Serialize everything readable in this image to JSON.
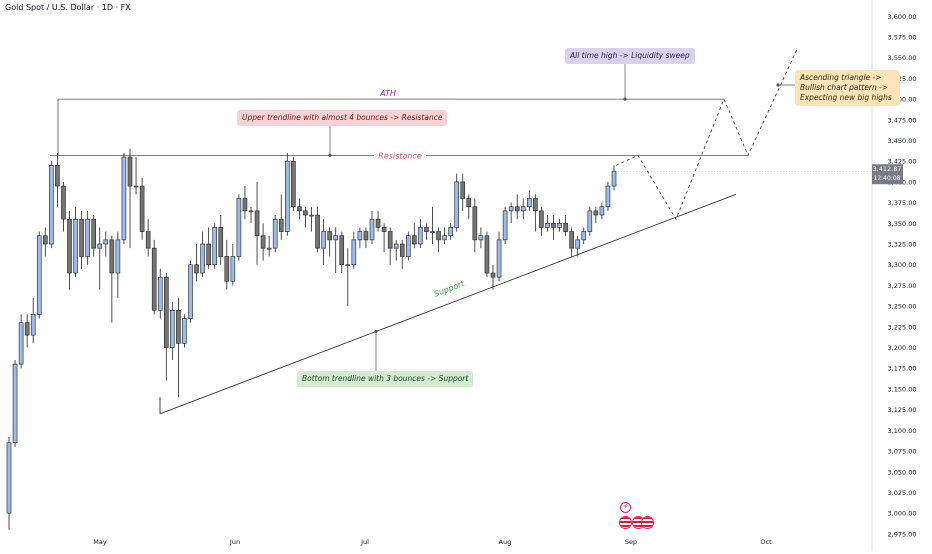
{
  "header": {
    "title": "Gold Spot / U.S. Dollar · 1D · FX"
  },
  "price_badge": {
    "price": "3,412.87",
    "countdown": "12:40:08"
  },
  "annotations": {
    "ath_label": "ATH",
    "resistance_label": "Resistance",
    "support_label": "Support",
    "ath_note": "All time high -> Liquidity sweep",
    "resistance_note": "Upper trendline with almost 4 bounces -> Resistance",
    "support_note": "Bottom trendline with 3 bounces -> Support",
    "ascending_note": "Ascending triangle -> Bullish chart pattern -> Expecting new big highs"
  },
  "colors": {
    "bull_candle": "#9bbbe8",
    "bear_candle": "#757575",
    "resistance_text": "#e0546a",
    "ath_text": "#9c27b0",
    "support_text": "#43a047",
    "price_badge_bg": "#787b86"
  },
  "chart_data": {
    "type": "candlestick",
    "title": "Gold Spot / U.S. Dollar · 1D · FX",
    "y_axis": {
      "ticks": [
        2975,
        3000,
        3025,
        3050,
        3075,
        3100,
        3125,
        3150,
        3175,
        3200,
        3225,
        3250,
        3275,
        3300,
        3325,
        3350,
        3375,
        3400,
        3425,
        3450,
        3475,
        3500,
        3525,
        3550,
        3575,
        3600
      ],
      "ylim": [
        2970,
        3610
      ],
      "position": "right"
    },
    "x_axis": {
      "tick_labels": [
        "May",
        "Jun",
        "Jul",
        "Aug",
        "Sep",
        "Oct"
      ]
    },
    "candles": [
      [
        3000,
        3085,
        2980,
        3092
      ],
      [
        3085,
        3180,
        3080,
        3185
      ],
      [
        3180,
        3230,
        3175,
        3240
      ],
      [
        3230,
        3215,
        3200,
        3240
      ],
      [
        3215,
        3240,
        3205,
        3260
      ],
      [
        3240,
        3335,
        3235,
        3340
      ],
      [
        3335,
        3325,
        3310,
        3345
      ],
      [
        3325,
        3420,
        3320,
        3425
      ],
      [
        3420,
        3395,
        3370,
        3435
      ],
      [
        3395,
        3355,
        3340,
        3400
      ],
      [
        3355,
        3290,
        3270,
        3365
      ],
      [
        3290,
        3355,
        3285,
        3370
      ],
      [
        3355,
        3310,
        3295,
        3365
      ],
      [
        3310,
        3355,
        3300,
        3365
      ],
      [
        3355,
        3320,
        3310,
        3360
      ],
      [
        3320,
        3325,
        3270,
        3345
      ],
      [
        3325,
        3330,
        3310,
        3340
      ],
      [
        3330,
        3290,
        3230,
        3335
      ],
      [
        3290,
        3330,
        3260,
        3340
      ],
      [
        3330,
        3430,
        3325,
        3435
      ],
      [
        3430,
        3395,
        3320,
        3440
      ],
      [
        3395,
        3395,
        3385,
        3430
      ],
      [
        3395,
        3340,
        3330,
        3405
      ],
      [
        3340,
        3320,
        3310,
        3355
      ],
      [
        3320,
        3245,
        3240,
        3330
      ],
      [
        3245,
        3285,
        3235,
        3295
      ],
      [
        3285,
        3200,
        3160,
        3290
      ],
      [
        3200,
        3245,
        3185,
        3255
      ],
      [
        3245,
        3205,
        3140,
        3260
      ],
      [
        3205,
        3235,
        3200,
        3240
      ],
      [
        3235,
        3300,
        3230,
        3305
      ],
      [
        3300,
        3290,
        3280,
        3325
      ],
      [
        3290,
        3325,
        3285,
        3340
      ],
      [
        3325,
        3300,
        3295,
        3345
      ],
      [
        3300,
        3345,
        3295,
        3350
      ],
      [
        3345,
        3310,
        3300,
        3360
      ],
      [
        3310,
        3280,
        3270,
        3330
      ],
      [
        3280,
        3310,
        3275,
        3325
      ],
      [
        3310,
        3380,
        3305,
        3385
      ],
      [
        3380,
        3365,
        3355,
        3395
      ],
      [
        3365,
        3365,
        3350,
        3370
      ],
      [
        3365,
        3335,
        3300,
        3400
      ],
      [
        3335,
        3320,
        3305,
        3350
      ],
      [
        3320,
        3320,
        3310,
        3335
      ],
      [
        3320,
        3355,
        3315,
        3360
      ],
      [
        3355,
        3340,
        3330,
        3385
      ],
      [
        3340,
        3425,
        3335,
        3435
      ],
      [
        3425,
        3370,
        3365,
        3430
      ],
      [
        3370,
        3365,
        3355,
        3380
      ],
      [
        3365,
        3360,
        3345,
        3370
      ],
      [
        3360,
        3360,
        3340,
        3370
      ],
      [
        3360,
        3320,
        3315,
        3370
      ],
      [
        3320,
        3340,
        3300,
        3355
      ],
      [
        3340,
        3330,
        3310,
        3345
      ],
      [
        3330,
        3335,
        3290,
        3345
      ],
      [
        3335,
        3300,
        3290,
        3340
      ],
      [
        3300,
        3300,
        3250,
        3320
      ],
      [
        3300,
        3330,
        3295,
        3340
      ],
      [
        3330,
        3340,
        3320,
        3345
      ],
      [
        3340,
        3330,
        3320,
        3345
      ],
      [
        3330,
        3355,
        3325,
        3365
      ],
      [
        3355,
        3345,
        3340,
        3365
      ],
      [
        3345,
        3340,
        3315,
        3350
      ],
      [
        3340,
        3320,
        3300,
        3345
      ],
      [
        3320,
        3325,
        3305,
        3330
      ],
      [
        3325,
        3310,
        3295,
        3330
      ],
      [
        3310,
        3335,
        3305,
        3340
      ],
      [
        3335,
        3325,
        3320,
        3350
      ],
      [
        3325,
        3345,
        3320,
        3355
      ],
      [
        3345,
        3340,
        3330,
        3350
      ],
      [
        3340,
        3340,
        3325,
        3370
      ],
      [
        3340,
        3330,
        3315,
        3345
      ],
      [
        3330,
        3335,
        3325,
        3345
      ],
      [
        3335,
        3345,
        3330,
        3350
      ],
      [
        3345,
        3400,
        3340,
        3410
      ],
      [
        3400,
        3380,
        3365,
        3410
      ],
      [
        3380,
        3370,
        3355,
        3385
      ],
      [
        3370,
        3330,
        3315,
        3380
      ],
      [
        3330,
        3335,
        3320,
        3345
      ],
      [
        3335,
        3290,
        3285,
        3340
      ],
      [
        3290,
        3285,
        3270,
        3300
      ],
      [
        3285,
        3330,
        3280,
        3340
      ],
      [
        3330,
        3365,
        3325,
        3370
      ],
      [
        3365,
        3370,
        3350,
        3375
      ],
      [
        3370,
        3365,
        3355,
        3385
      ],
      [
        3365,
        3370,
        3355,
        3380
      ],
      [
        3370,
        3380,
        3365,
        3390
      ],
      [
        3380,
        3365,
        3340,
        3385
      ],
      [
        3365,
        3345,
        3335,
        3370
      ],
      [
        3345,
        3350,
        3340,
        3360
      ],
      [
        3350,
        3345,
        3330,
        3360
      ],
      [
        3345,
        3350,
        3340,
        3355
      ],
      [
        3350,
        3340,
        3335,
        3360
      ],
      [
        3340,
        3320,
        3310,
        3345
      ],
      [
        3320,
        3330,
        3310,
        3335
      ],
      [
        3330,
        3340,
        3325,
        3345
      ],
      [
        3340,
        3365,
        3335,
        3370
      ],
      [
        3365,
        3360,
        3350,
        3370
      ],
      [
        3360,
        3370,
        3355,
        3375
      ],
      [
        3370,
        3395,
        3365,
        3400
      ],
      [
        3395,
        3413,
        3390,
        3420
      ]
    ],
    "levels": [
      {
        "name": "Resistance",
        "price": 3432
      },
      {
        "name": "ATH",
        "price": 3500
      }
    ],
    "last_price": 3412.87,
    "grid": false,
    "legend": "none"
  }
}
